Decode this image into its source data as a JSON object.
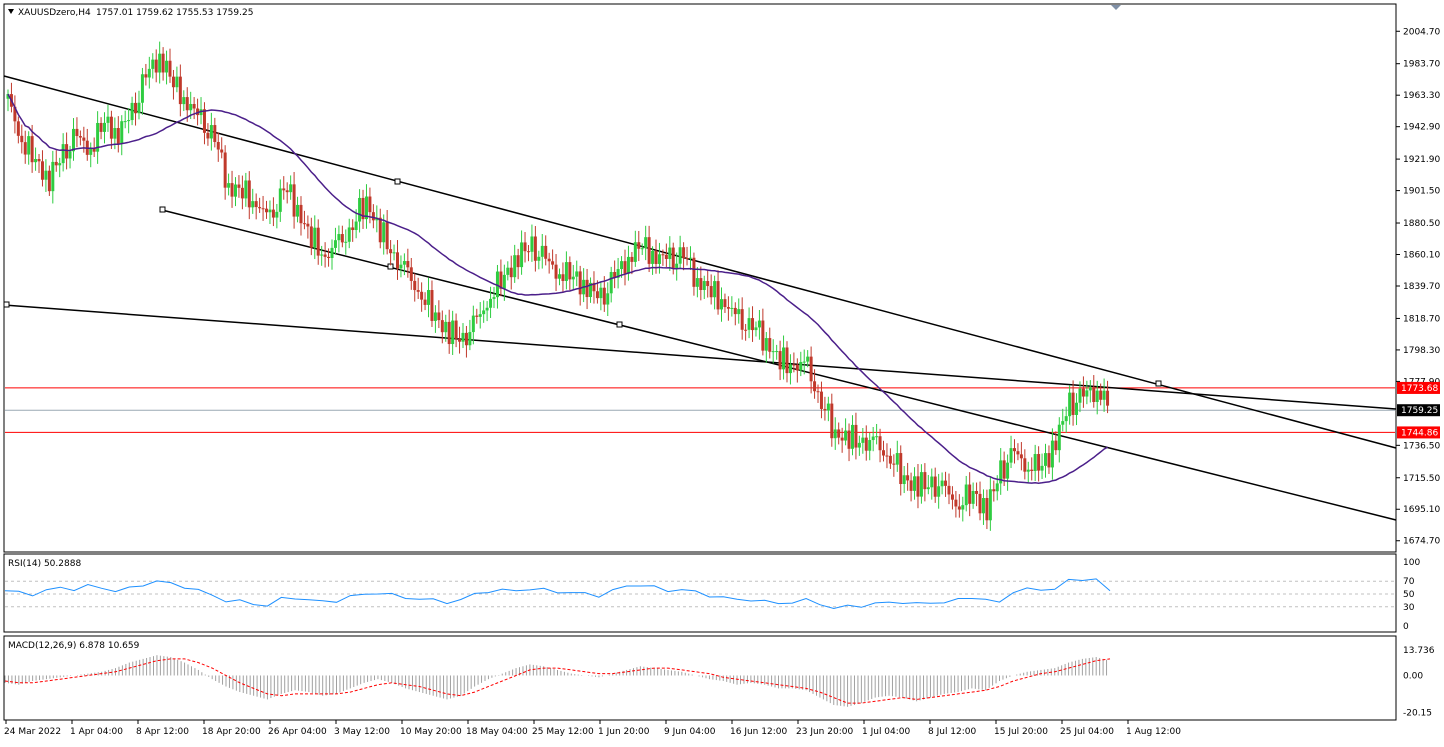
{
  "header": {
    "symbol_label": "XAUUSDzero,H4",
    "ohlc_label": "1757.01 1759.62 1755.53 1759.25",
    "collapse_icon": "triangle-down-icon"
  },
  "colors": {
    "bull": "#2ecc40",
    "bear": "#c0392b",
    "ma": "#4b1f8a",
    "trend": "#000000",
    "level": "#ff0000",
    "rsi": "#1e90ff",
    "macd_hist": "#a0a0a0",
    "macd_signal": "#ff0000",
    "grid_dash": "#c0c0c0"
  },
  "chart_data": [
    {
      "type": "candlestick",
      "name": "price",
      "y_ticks": [
        "2004.70",
        "1983.70",
        "1963.30",
        "1942.90",
        "1921.90",
        "1901.50",
        "1880.50",
        "1860.10",
        "1839.70",
        "1818.70",
        "1798.30",
        "1777.90",
        "1736.50",
        "1715.50",
        "1695.10",
        "1674.70"
      ],
      "ylim": [
        1670,
        2012
      ],
      "last_price": "1759.25",
      "levels": [
        {
          "value": 1773.68,
          "label": "1773.68"
        },
        {
          "value": 1744.86,
          "label": "1744.86"
        }
      ],
      "x_ticks": [
        "24 Mar 2022",
        "1 Apr 04:00",
        "8 Apr 12:00",
        "18 Apr 20:00",
        "26 Apr 04:00",
        "3 May 12:00",
        "10 May 20:00",
        "18 May 04:00",
        "25 May 12:00",
        "1 Jun 20:00",
        "9 Jun 04:00",
        "16 Jun 12:00",
        "23 Jun 20:00",
        "1 Jul 04:00",
        "8 Jul 12:00",
        "15 Jul 20:00",
        "25 Jul 04:00",
        "1 Aug 12:00"
      ],
      "path": [
        1960,
        1935,
        1920,
        1910,
        1925,
        1935,
        1930,
        1945,
        1940,
        1950,
        1975,
        1990,
        1970,
        1960,
        1945,
        1935,
        1905,
        1900,
        1895,
        1880,
        1905,
        1890,
        1870,
        1860,
        1865,
        1880,
        1895,
        1875,
        1860,
        1845,
        1835,
        1820,
        1810,
        1805,
        1815,
        1835,
        1845,
        1860,
        1865,
        1855,
        1850,
        1845,
        1840,
        1830,
        1845,
        1860,
        1865,
        1860,
        1855,
        1860,
        1845,
        1835,
        1830,
        1815,
        1815,
        1805,
        1790,
        1790,
        1785,
        1765,
        1745,
        1740,
        1740,
        1735,
        1730,
        1715,
        1710,
        1712,
        1705,
        1700,
        1705,
        1695,
        1720,
        1730,
        1725,
        1722,
        1740,
        1762,
        1768,
        1775,
        1758
      ]
    },
    {
      "type": "line",
      "name": "RSI(14)",
      "label": "RSI(14) 50.2888",
      "y_ticks": [
        "100",
        "70",
        "50",
        "30",
        "0"
      ],
      "ylim": [
        0,
        100
      ],
      "values": [
        55,
        52,
        50,
        55,
        60,
        58,
        62,
        60,
        55,
        58,
        65,
        70,
        66,
        62,
        55,
        48,
        40,
        38,
        35,
        32,
        42,
        45,
        40,
        38,
        40,
        45,
        50,
        52,
        48,
        45,
        42,
        40,
        38,
        40,
        50,
        55,
        55,
        56,
        58,
        56,
        54,
        52,
        50,
        48,
        55,
        62,
        65,
        60,
        55,
        58,
        52,
        48,
        45,
        40,
        42,
        38,
        35,
        38,
        40,
        35,
        28,
        30,
        32,
        35,
        36,
        38,
        34,
        36,
        38,
        40,
        45,
        42,
        35,
        55,
        58,
        55,
        60,
        70,
        72,
        75,
        52
      ]
    },
    {
      "type": "bar",
      "name": "MACD(12,26,9)",
      "label": "MACD(12,26,9) 6.878 10.659",
      "y_ticks": [
        "13.736",
        "0.00",
        "-20.15"
      ],
      "ylim": [
        -22,
        16
      ],
      "values": [
        -4,
        -5,
        -3,
        -2,
        -1,
        0,
        1,
        2,
        4,
        7,
        9,
        11,
        10,
        7,
        3,
        -2,
        -6,
        -9,
        -11,
        -13,
        -10,
        -8,
        -9,
        -11,
        -10,
        -7,
        -4,
        -2,
        -4,
        -7,
        -9,
        -11,
        -13,
        -11,
        -6,
        -2,
        1,
        4,
        6,
        5,
        3,
        1,
        0,
        -1,
        1,
        3,
        5,
        4,
        3,
        2,
        0,
        -2,
        -3,
        -5,
        -4,
        -5,
        -7,
        -7,
        -8,
        -12,
        -16,
        -17,
        -15,
        -12,
        -11,
        -12,
        -14,
        -12,
        -10,
        -9,
        -7,
        -8,
        -3,
        0,
        2,
        3,
        4,
        7,
        9,
        10,
        8
      ],
      "signal": [
        -3,
        -4,
        -4,
        -3,
        -2,
        -1,
        0,
        1,
        2,
        4,
        6,
        8,
        9,
        9,
        7,
        4,
        0,
        -4,
        -7,
        -10,
        -11,
        -10,
        -10,
        -10,
        -10,
        -9,
        -7,
        -5,
        -4,
        -5,
        -6,
        -8,
        -10,
        -11,
        -9,
        -6,
        -3,
        0,
        3,
        4,
        4,
        3,
        2,
        1,
        1,
        2,
        3,
        4,
        4,
        3,
        2,
        1,
        -1,
        -2,
        -3,
        -4,
        -5,
        -6,
        -7,
        -9,
        -12,
        -15,
        -15,
        -14,
        -13,
        -12,
        -13,
        -12,
        -11,
        -10,
        -9,
        -8,
        -6,
        -3,
        -1,
        1,
        2,
        4,
        6,
        8,
        9
      ]
    }
  ]
}
